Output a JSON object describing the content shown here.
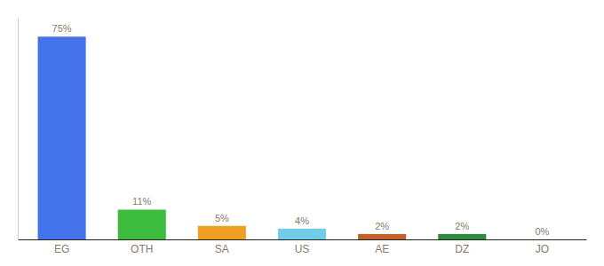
{
  "chart_data": {
    "type": "bar",
    "categories": [
      "EG",
      "OTH",
      "SA",
      "US",
      "AE",
      "DZ",
      "JO"
    ],
    "values": [
      75,
      11,
      5,
      4,
      2,
      2,
      0
    ],
    "value_labels": [
      "75%",
      "11%",
      "5%",
      "4%",
      "2%",
      "2%",
      "0%"
    ],
    "colors": [
      "#4472e8",
      "#3dbb3d",
      "#f0a020",
      "#70cce8",
      "#c0622a",
      "#2e8b3d",
      "#aaaaaa"
    ],
    "ylim": [
      0,
      82
    ],
    "grid": false,
    "data_labels": true,
    "tick_labels": "x"
  }
}
